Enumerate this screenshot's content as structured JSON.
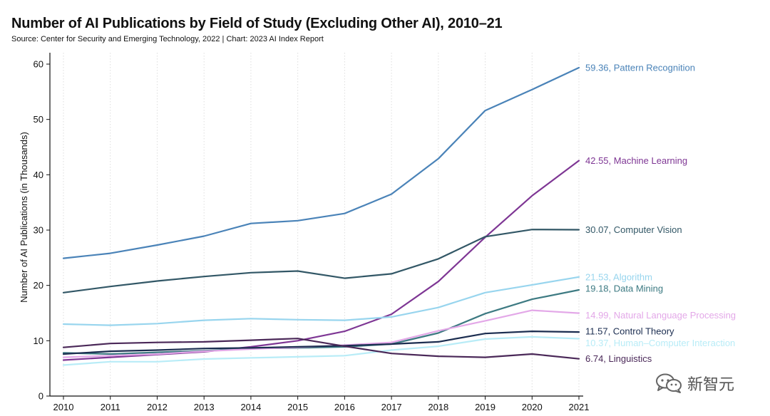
{
  "chart_data": {
    "type": "line",
    "title": "Number of AI Publications by Field of Study (Excluding Other AI), 2010–21",
    "subtitle": "Source: Center for Security and Emerging Technology, 2022 | Chart: 2023 AI Index Report",
    "xlabel": "",
    "ylabel": "Number of AI Publications (in Thousands)",
    "ylim": [
      0,
      60
    ],
    "yticks": [
      0,
      10,
      20,
      30,
      40,
      50,
      60
    ],
    "x": [
      2010,
      2011,
      2012,
      2013,
      2014,
      2015,
      2016,
      2017,
      2018,
      2019,
      2020,
      2021
    ],
    "series": [
      {
        "name": "Pattern Recognition",
        "color": "#4a83b8",
        "end_label": "59.36, Pattern Recognition",
        "values": [
          24.9,
          25.8,
          27.3,
          28.9,
          31.2,
          31.7,
          33.0,
          36.5,
          42.9,
          51.6,
          55.4,
          59.36
        ]
      },
      {
        "name": "Machine Learning",
        "color": "#7e3694",
        "end_label": "42.55, Machine Learning",
        "values": [
          6.5,
          7.0,
          7.5,
          8.0,
          8.9,
          10.0,
          11.7,
          14.8,
          20.7,
          28.7,
          36.2,
          42.55
        ]
      },
      {
        "name": "Computer Vision",
        "color": "#325766",
        "end_label": "30.07, Computer Vision",
        "values": [
          18.7,
          19.8,
          20.8,
          21.6,
          22.3,
          22.6,
          21.3,
          22.1,
          24.8,
          28.8,
          30.1,
          30.07
        ]
      },
      {
        "name": "Algorithm",
        "color": "#98d5ee",
        "end_label": "21.53, Algorithm",
        "values": [
          13.0,
          12.8,
          13.1,
          13.7,
          14.0,
          13.8,
          13.7,
          14.3,
          16.0,
          18.7,
          20.1,
          21.53
        ]
      },
      {
        "name": "Data Mining",
        "color": "#3d7a82",
        "end_label": "19.18, Data Mining",
        "values": [
          7.8,
          7.6,
          7.9,
          8.2,
          8.6,
          8.7,
          8.9,
          9.4,
          11.4,
          14.9,
          17.5,
          19.18
        ]
      },
      {
        "name": "Natural Language Processing",
        "color": "#e3a8e8",
        "end_label": "14.99, Natural Language Processing",
        "values": [
          7.0,
          7.3,
          7.6,
          8.1,
          8.5,
          8.8,
          9.2,
          9.7,
          11.8,
          13.6,
          15.5,
          14.99
        ]
      },
      {
        "name": "Control Theory",
        "color": "#1b2d50",
        "end_label": "11.57, Control Theory",
        "values": [
          7.6,
          8.1,
          8.3,
          8.6,
          8.7,
          8.9,
          9.1,
          9.4,
          9.8,
          11.3,
          11.7,
          11.57
        ]
      },
      {
        "name": "Human–Computer Interaction",
        "color": "#b8ecf7",
        "end_label": "10.37, Human–Computer Interaction",
        "values": [
          5.6,
          6.2,
          6.2,
          6.7,
          6.9,
          7.1,
          7.3,
          8.3,
          9.0,
          10.3,
          10.7,
          10.37
        ]
      },
      {
        "name": "Linguistics",
        "color": "#4a2858",
        "end_label": "6.74, Linguistics",
        "values": [
          8.8,
          9.5,
          9.7,
          9.8,
          10.1,
          10.4,
          9.0,
          7.7,
          7.2,
          7.0,
          7.6,
          6.74
        ]
      }
    ]
  },
  "watermark": {
    "text": "新智元",
    "icon": "wechat-bubble-icon"
  }
}
